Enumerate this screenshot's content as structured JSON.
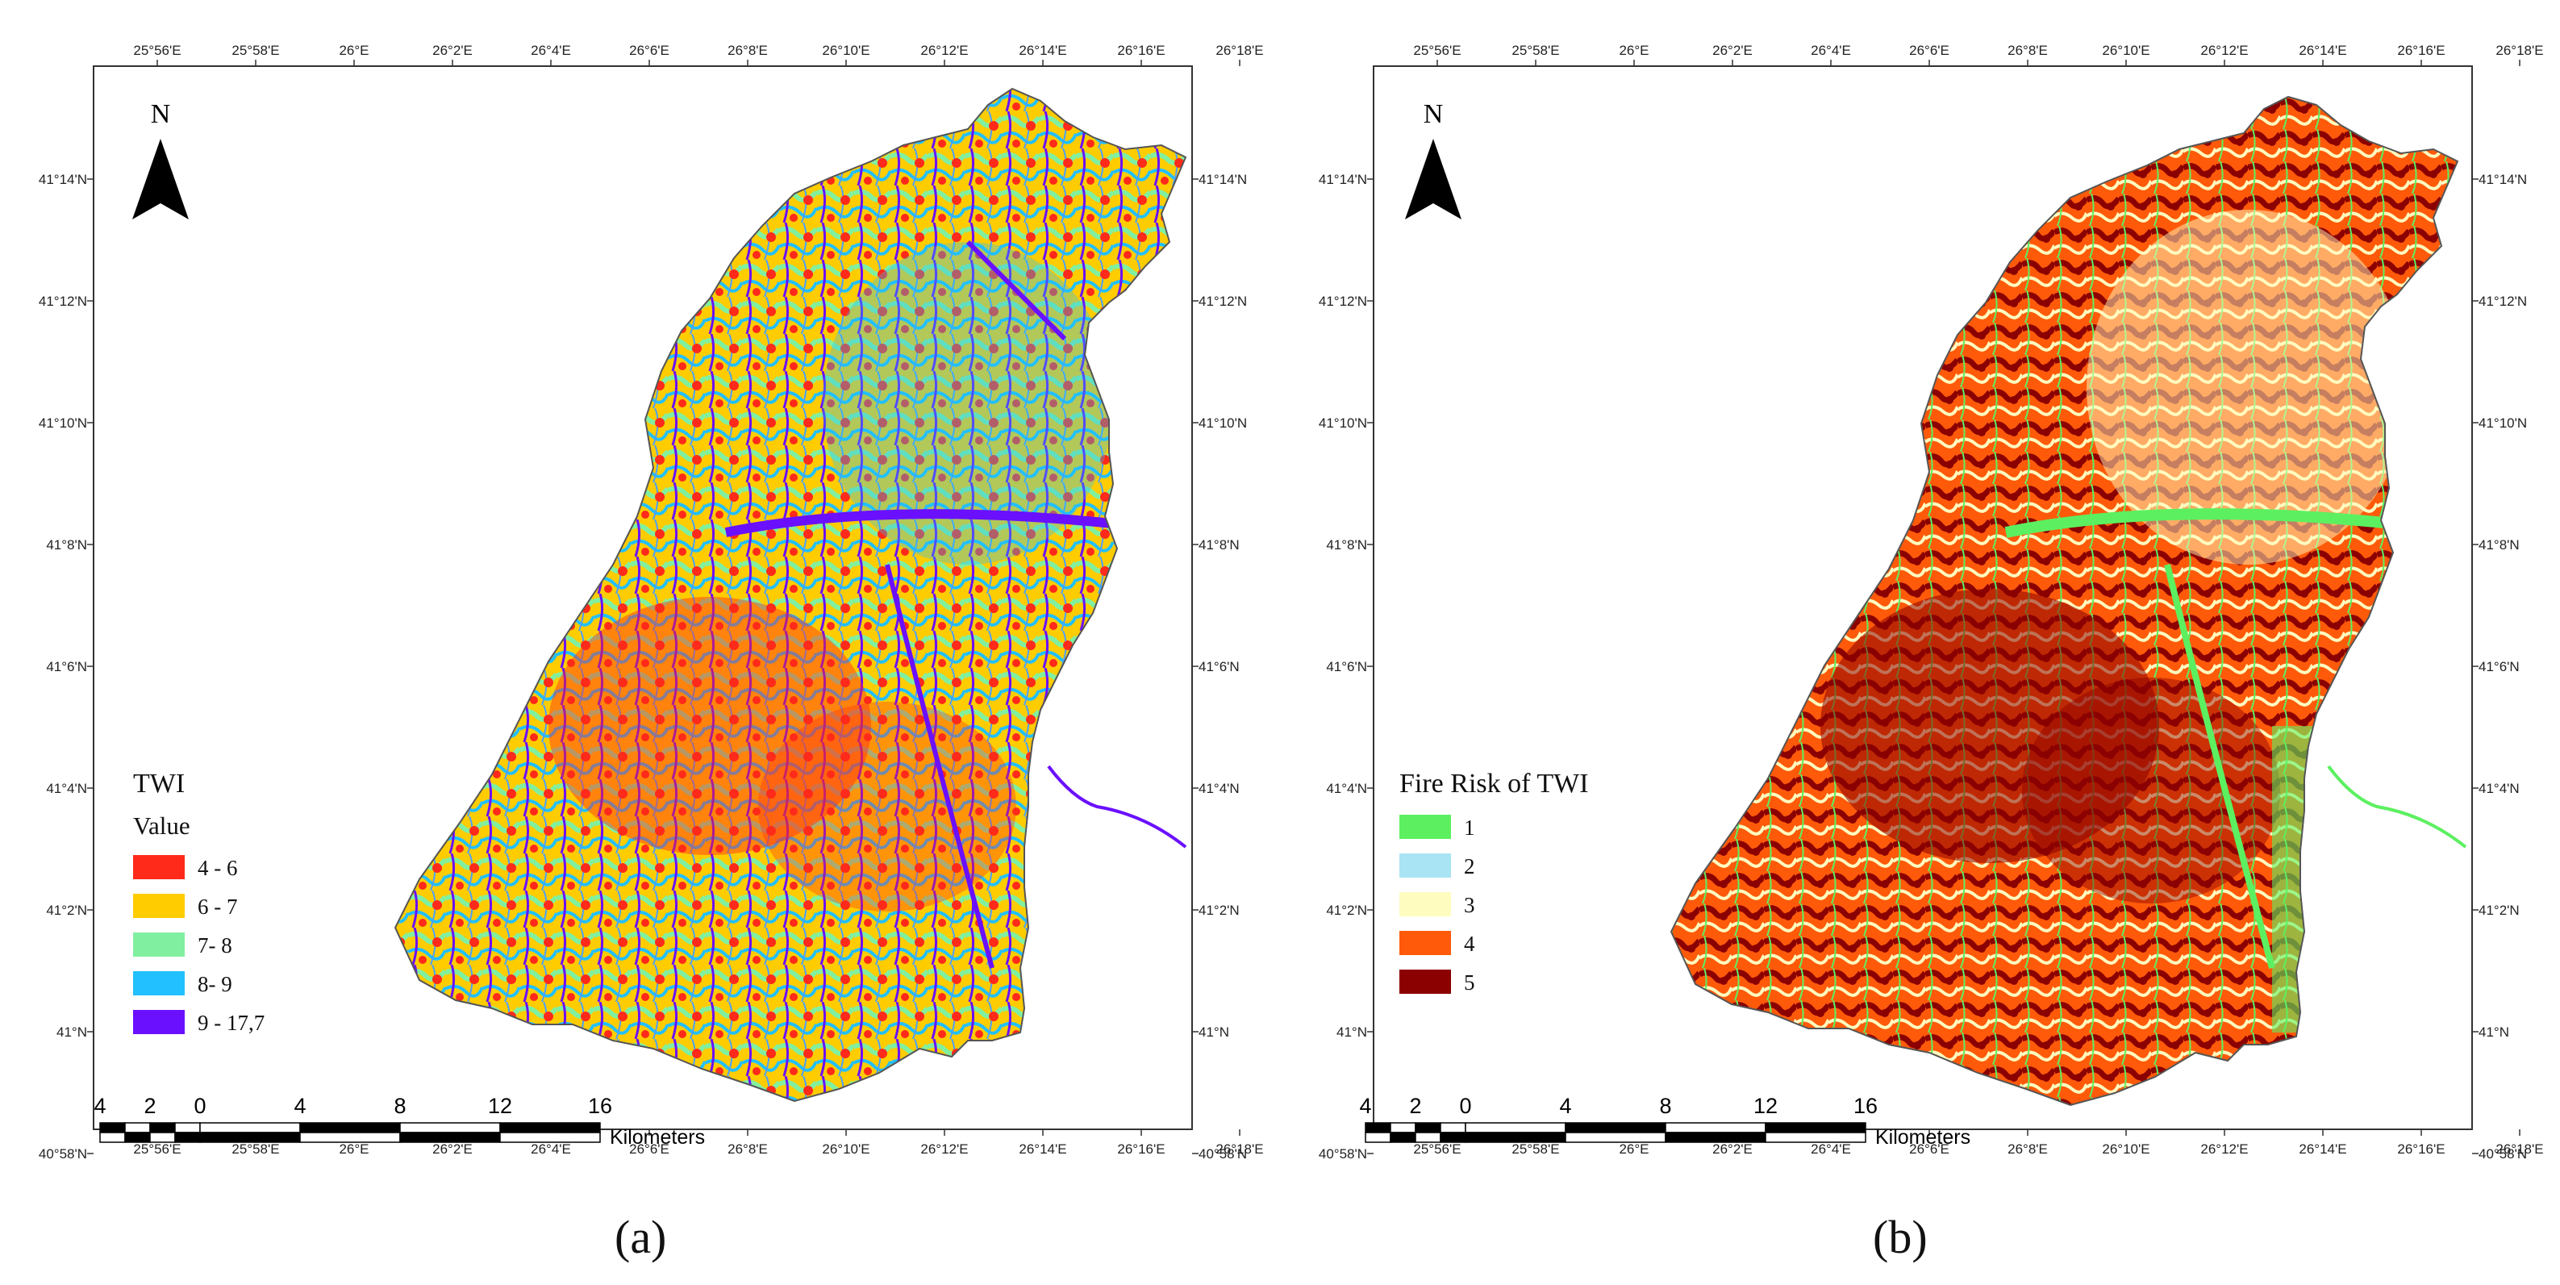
{
  "panels": [
    {
      "id": "a",
      "caption": "(a)",
      "north_label": "N",
      "legend": {
        "title": "TWI",
        "subtitle": "Value",
        "items": [
          {
            "label": "4 - 6",
            "color": "#ff2a1a"
          },
          {
            "label": "6 - 7",
            "color": "#ffcc00"
          },
          {
            "label": "7- 8",
            "color": "#80f0a0"
          },
          {
            "label": "8- 9",
            "color": "#22c0ff"
          },
          {
            "label": "9 - 17,7",
            "color": "#6a10ff"
          }
        ]
      },
      "scale_bar": {
        "numbers": [
          "4",
          "2",
          "0",
          "4",
          "8",
          "12",
          "16"
        ],
        "unit": "Kilometers"
      },
      "lon_ticks": [
        "25°56'E",
        "25°58'E",
        "26°E",
        "26°2'E",
        "26°4'E",
        "26°6'E",
        "26°8'E",
        "26°10'E",
        "26°12'E",
        "26°14'E",
        "26°16'E",
        "26°18'E"
      ],
      "lat_ticks": [
        "41°14'N",
        "41°12'N",
        "41°10'N",
        "41°8'N",
        "41°6'N",
        "41°4'N",
        "41°2'N",
        "41°N",
        "40°58'N"
      ]
    },
    {
      "id": "b",
      "caption": "(b)",
      "north_label": "N",
      "legend": {
        "title": "Fire Risk of TWI",
        "subtitle": "",
        "items": [
          {
            "label": "1",
            "color": "#5cf060"
          },
          {
            "label": "2",
            "color": "#a8e4f4"
          },
          {
            "label": "3",
            "color": "#fffcc0"
          },
          {
            "label": "4",
            "color": "#ff5a0a"
          },
          {
            "label": "5",
            "color": "#8b0000"
          }
        ]
      },
      "scale_bar": {
        "numbers": [
          "4",
          "2",
          "0",
          "4",
          "8",
          "12",
          "16"
        ],
        "unit": "Kilometers"
      },
      "lon_ticks": [
        "25°56'E",
        "25°58'E",
        "26°E",
        "26°2'E",
        "26°4'E",
        "26°6'E",
        "26°8'E",
        "26°10'E",
        "26°12'E",
        "26°14'E",
        "26°16'E",
        "26°18'E"
      ],
      "lat_ticks": [
        "41°14'N",
        "41°12'N",
        "41°10'N",
        "41°8'N",
        "41°6'N",
        "41°4'N",
        "41°2'N",
        "41°N",
        "40°58'N"
      ]
    }
  ]
}
